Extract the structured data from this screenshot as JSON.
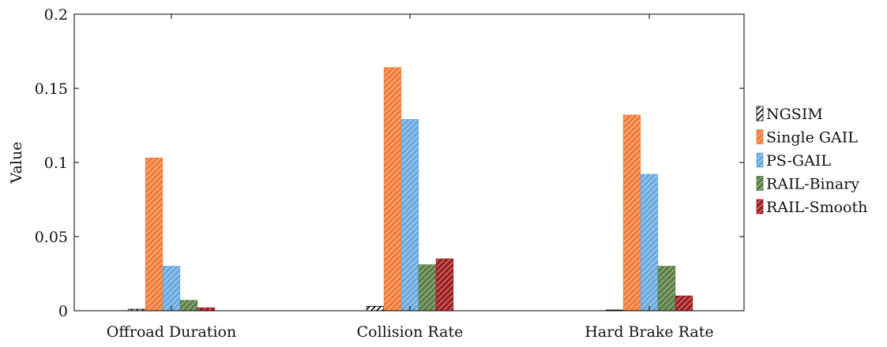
{
  "chart_data": {
    "type": "bar",
    "title": "",
    "xlabel": "",
    "ylabel": "Value",
    "ylim": [
      0,
      0.2
    ],
    "yticks": [
      0,
      0.05,
      0.1,
      0.15,
      0.2
    ],
    "ytick_labels": [
      "0",
      "0.05",
      "0.1",
      "0.15",
      "0.2"
    ],
    "grid": false,
    "legend_position": "right",
    "categories": [
      "Offroad Duration",
      "Collision Rate",
      "Hard Brake Rate"
    ],
    "series": [
      {
        "name": "NGSIM",
        "values": [
          0.001,
          0.003,
          0.0005
        ],
        "color": "#000000",
        "pattern": "hatch-dark"
      },
      {
        "name": "Single GAIL",
        "values": [
          0.103,
          0.164,
          0.132
        ],
        "color": "#f07e3a",
        "pattern": "hatch-light"
      },
      {
        "name": "PS-GAIL",
        "values": [
          0.03,
          0.129,
          0.092
        ],
        "color": "#6aaadf",
        "pattern": "hatch-light"
      },
      {
        "name": "RAIL-Binary",
        "values": [
          0.007,
          0.031,
          0.03
        ],
        "color": "#5b7f45",
        "pattern": "hatch-light"
      },
      {
        "name": "RAIL-Smooth",
        "values": [
          0.002,
          0.035,
          0.01
        ],
        "color": "#a01f22",
        "pattern": "hatch-light"
      }
    ]
  }
}
